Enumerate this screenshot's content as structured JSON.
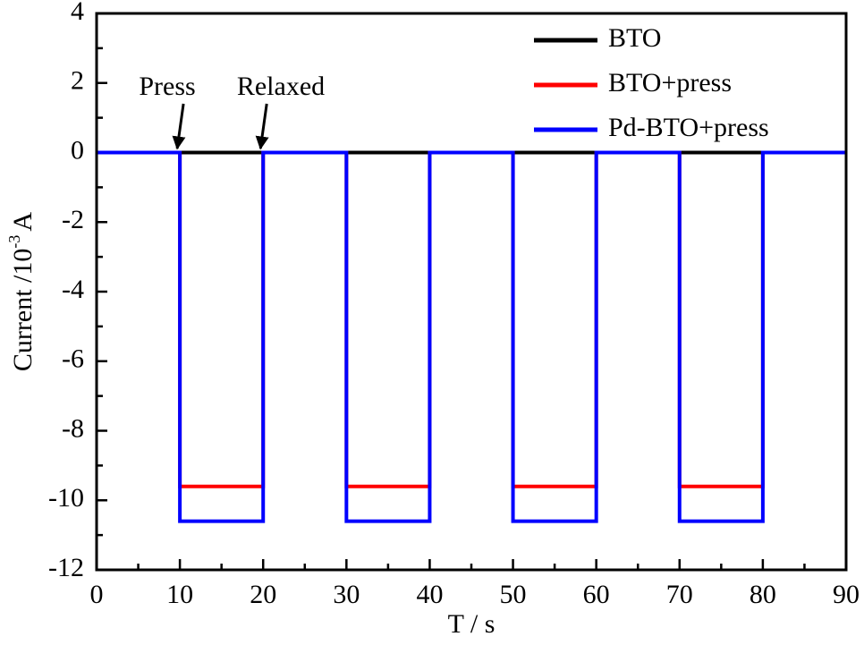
{
  "chart_data": {
    "type": "line",
    "xlabel": "T / s",
    "ylabel": {
      "text": "Current /10",
      "sup": "-3",
      "unit": "A"
    },
    "x": [
      0,
      10,
      10,
      20,
      20,
      30,
      30,
      40,
      40,
      50,
      50,
      60,
      60,
      70,
      70,
      80,
      80,
      90
    ],
    "series": [
      {
        "name": "BTO",
        "color": "#000000",
        "values": [
          0,
          0,
          0,
          0,
          0,
          0,
          0,
          0,
          0,
          0,
          0,
          0,
          0,
          0,
          0,
          0,
          0,
          0
        ]
      },
      {
        "name": "BTO+press",
        "color": "#ff0000",
        "values": [
          0,
          0,
          -9.6,
          -9.6,
          0,
          0,
          -9.6,
          -9.6,
          0,
          0,
          -9.6,
          -9.6,
          0,
          0,
          -9.6,
          -9.6,
          0,
          0
        ]
      },
      {
        "name": "Pd-BTO+press",
        "color": "#0000ff",
        "values": [
          0,
          0,
          -10.6,
          -10.6,
          0,
          0,
          -10.6,
          -10.6,
          0,
          0,
          -10.6,
          -10.6,
          0,
          0,
          -10.6,
          -10.6,
          0,
          0
        ]
      }
    ],
    "xlim": [
      0,
      90
    ],
    "xticks": [
      0,
      10,
      20,
      30,
      40,
      50,
      60,
      70,
      80,
      90
    ],
    "xminorticks": [
      5,
      15,
      25,
      35,
      45,
      55,
      65,
      75,
      85
    ],
    "ylim": [
      -12,
      4
    ],
    "yticks": [
      4,
      2,
      0,
      -2,
      -4,
      -6,
      -8,
      -10,
      -12
    ],
    "yminorticks": [
      3,
      1,
      -1,
      -3,
      -5,
      -7,
      -9,
      -11
    ],
    "annotations": [
      {
        "text": "Press",
        "x": 10
      },
      {
        "text": "Relaxed",
        "x": 20
      }
    ],
    "legend": "upper right"
  }
}
